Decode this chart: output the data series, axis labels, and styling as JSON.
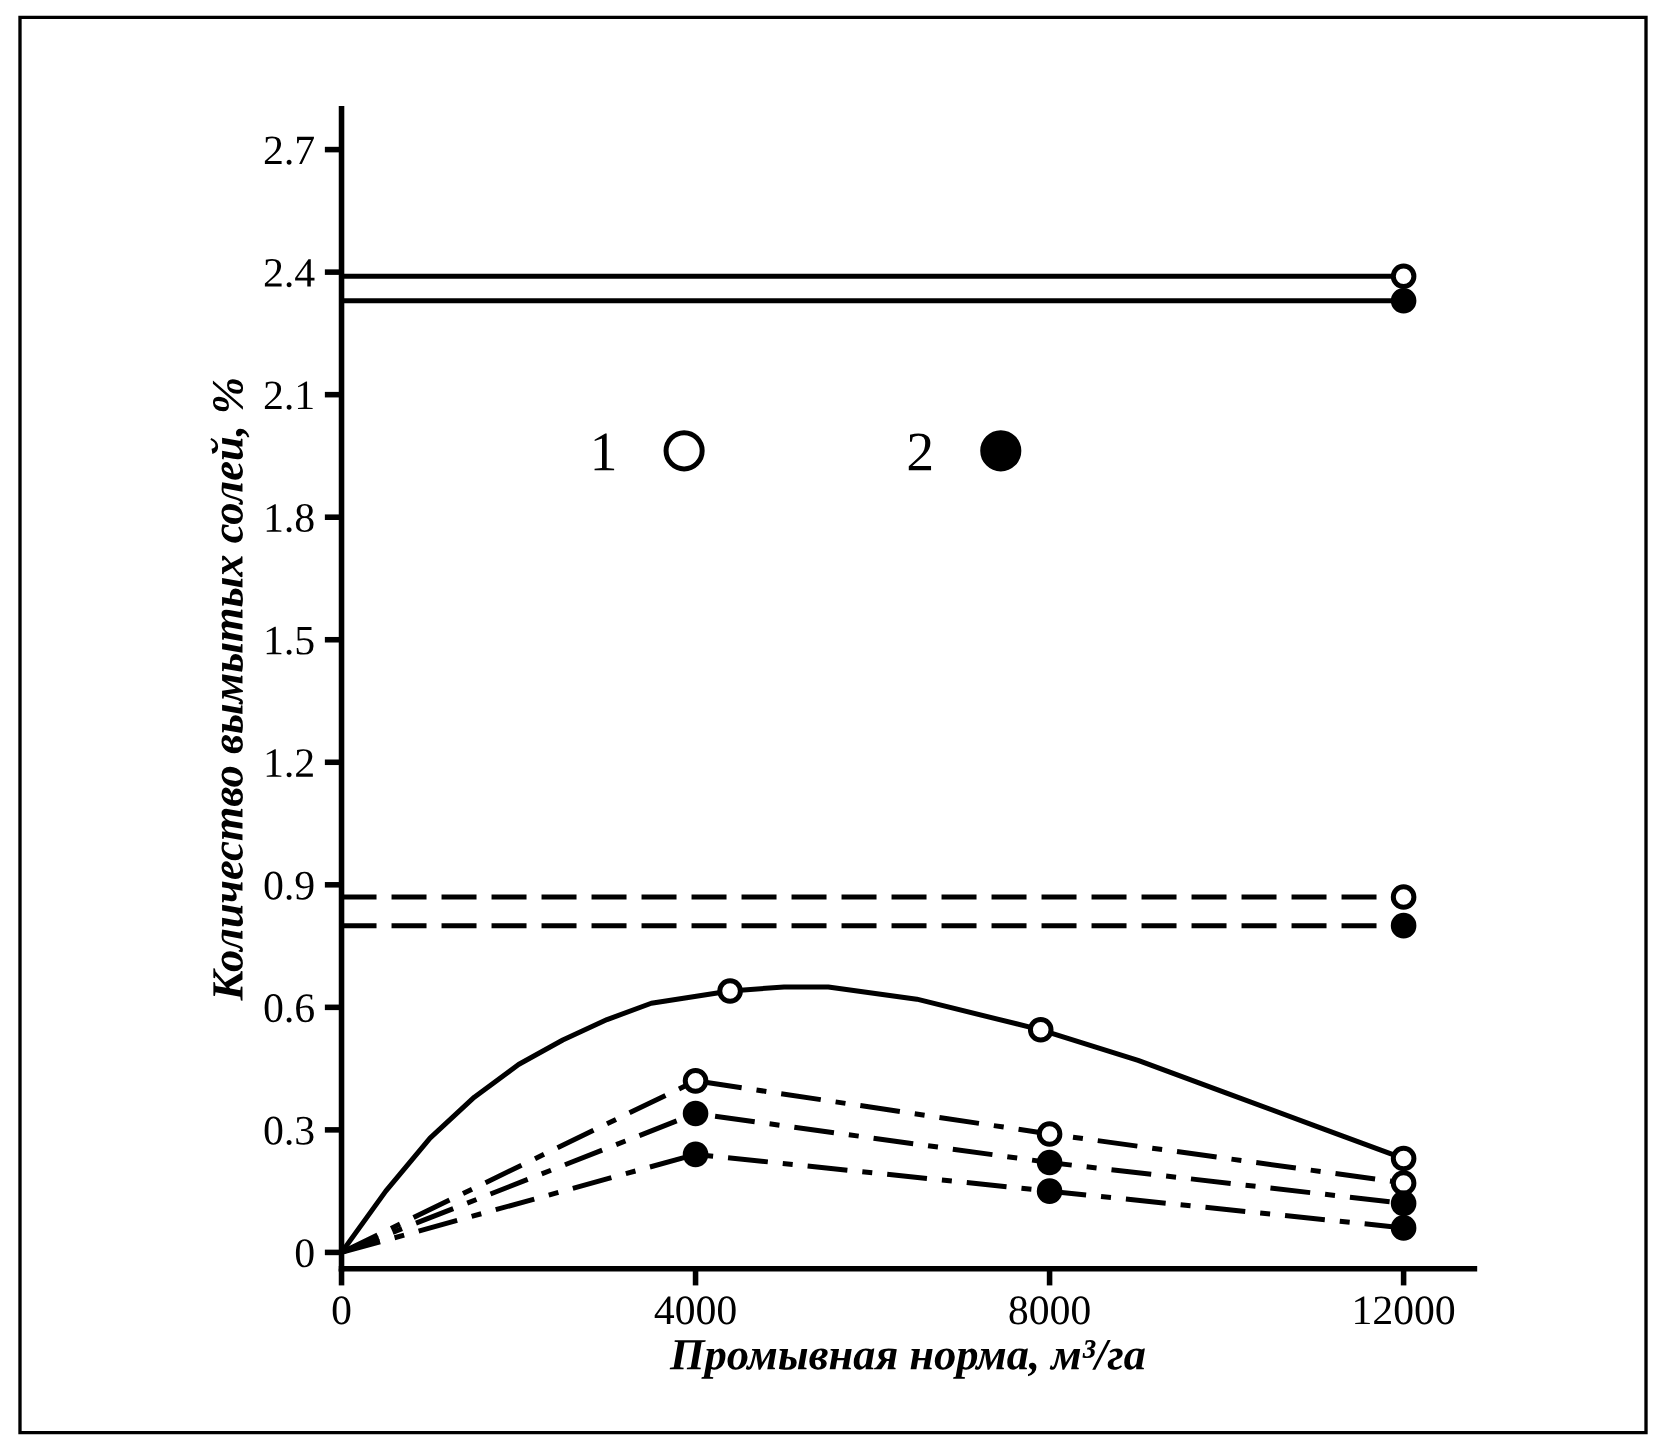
{
  "chart_data": {
    "type": "line",
    "xlabel": "Промывная норма, м³/га",
    "ylabel": "Количество вымытых солей, %",
    "xlim": [
      0,
      12800
    ],
    "xticks": [
      0,
      4000,
      8000,
      12000
    ],
    "ylim": [
      -0.04,
      2.8
    ],
    "yticks": [
      0,
      0.3,
      0.6,
      0.9,
      1.2,
      1.5,
      1.8,
      2.1,
      2.4,
      2.7
    ],
    "grid": false,
    "legend": "center",
    "marker": "none",
    "series": [
      {
        "color": "#000000",
        "line_style": "solid",
        "x": [
          0,
          12000
        ],
        "values": [
          2.39,
          2.39
        ]
      },
      {
        "color": "#000000",
        "line_style": "solid",
        "x": [
          0,
          12000
        ],
        "values": [
          2.33,
          2.33
        ]
      },
      {
        "color": "#000000",
        "line_style": "dashed",
        "x": [
          0,
          12000
        ],
        "values": [
          0.87,
          0.87
        ]
      },
      {
        "color": "#000000",
        "line_style": "dashed",
        "x": [
          0,
          12000
        ],
        "values": [
          0.8,
          0.8
        ]
      },
      {
        "color": "#000000",
        "line_style": "solid",
        "x": [
          0,
          500,
          1000,
          1500,
          2000,
          2500,
          3000,
          3500,
          4390,
          5000,
          5500,
          6500,
          7900,
          9000,
          10000,
          11000,
          12000
        ],
        "values": [
          0,
          0.15,
          0.28,
          0.38,
          0.46,
          0.52,
          0.57,
          0.61,
          0.64,
          0.65,
          0.65,
          0.62,
          0.545,
          0.47,
          0.39,
          0.31,
          0.23
        ]
      },
      {
        "color": "#000000",
        "line_style": "dashdot",
        "x": [
          0,
          4000,
          8000,
          12000
        ],
        "values": [
          0,
          0.42,
          0.29,
          0.17
        ]
      },
      {
        "color": "#000000",
        "line_style": "dashdot",
        "x": [
          0,
          4000,
          8000,
          12000
        ],
        "values": [
          0,
          0.34,
          0.22,
          0.12
        ]
      },
      {
        "color": "#000000",
        "line_style": "dashdot",
        "x": [
          0,
          4000,
          8000,
          12000
        ],
        "values": [
          0,
          0.24,
          0.15,
          0.06
        ]
      },
      {
        "type": "scatter",
        "name": "1",
        "color": "#ffffff",
        "marker": "circle",
        "x": [
          12000,
          12000,
          4390,
          7900,
          12000,
          4000,
          8000,
          12000
        ],
        "values": [
          2.39,
          0.87,
          0.64,
          0.545,
          0.23,
          0.42,
          0.29,
          0.17
        ]
      },
      {
        "type": "scatter",
        "name": "2",
        "color": "#000000",
        "marker": "circle",
        "x": [
          12000,
          12000,
          4000,
          8000,
          12000,
          4000,
          8000,
          12000
        ],
        "values": [
          2.33,
          0.8,
          0.34,
          0.22,
          0.12,
          0.24,
          0.15,
          0.06
        ]
      }
    ]
  }
}
